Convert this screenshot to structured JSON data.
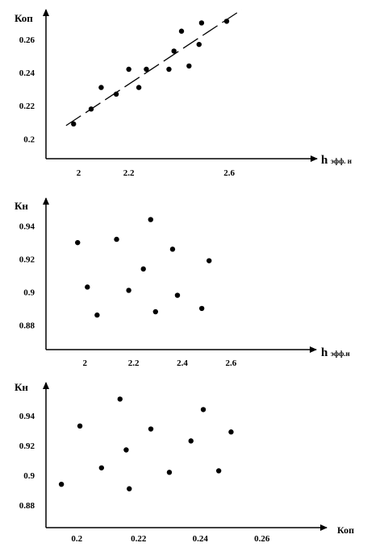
{
  "chart_data": [
    {
      "type": "scatter",
      "ylabel": "Коп",
      "xlabel_main": "h",
      "xlabel_sub": "эфф. н",
      "xticks": [
        "2",
        "2.2",
        "2.6"
      ],
      "xtick_values": [
        2,
        2.2,
        2.6
      ],
      "yticks": [
        "0.2",
        "0.22",
        "0.24",
        "0.26"
      ],
      "ytick_values": [
        0.2,
        0.22,
        0.24,
        0.26
      ],
      "xlim": [
        1.87,
        2.95
      ],
      "ylim": [
        0.188,
        0.278
      ],
      "trendline": {
        "x": [
          1.95,
          2.65
        ],
        "y": [
          0.208,
          0.278
        ],
        "style": "dashed"
      },
      "points": [
        {
          "x": 1.98,
          "y": 0.209
        },
        {
          "x": 2.05,
          "y": 0.218
        },
        {
          "x": 2.09,
          "y": 0.231
        },
        {
          "x": 2.15,
          "y": 0.227
        },
        {
          "x": 2.2,
          "y": 0.242
        },
        {
          "x": 2.24,
          "y": 0.231
        },
        {
          "x": 2.27,
          "y": 0.242
        },
        {
          "x": 2.36,
          "y": 0.242
        },
        {
          "x": 2.38,
          "y": 0.253
        },
        {
          "x": 2.41,
          "y": 0.265
        },
        {
          "x": 2.44,
          "y": 0.244
        },
        {
          "x": 2.48,
          "y": 0.257
        },
        {
          "x": 2.49,
          "y": 0.27
        },
        {
          "x": 2.59,
          "y": 0.271
        }
      ]
    },
    {
      "type": "scatter",
      "ylabel": "Кн",
      "xlabel_main": "h",
      "xlabel_sub": "эфф.н",
      "xticks": [
        "2",
        "2.2",
        "2.4",
        "2.6"
      ],
      "xtick_values": [
        2,
        2.2,
        2.4,
        2.6
      ],
      "yticks": [
        "0.88",
        "0.9",
        "0.92",
        "0.94"
      ],
      "ytick_values": [
        0.88,
        0.9,
        0.92,
        0.94
      ],
      "xlim": [
        1.84,
        2.95
      ],
      "ylim": [
        0.865,
        0.957
      ],
      "points": [
        {
          "x": 1.97,
          "y": 0.93
        },
        {
          "x": 2.01,
          "y": 0.903
        },
        {
          "x": 2.05,
          "y": 0.886
        },
        {
          "x": 2.13,
          "y": 0.932
        },
        {
          "x": 2.18,
          "y": 0.901
        },
        {
          "x": 2.24,
          "y": 0.914
        },
        {
          "x": 2.27,
          "y": 0.944
        },
        {
          "x": 2.29,
          "y": 0.888
        },
        {
          "x": 2.36,
          "y": 0.926
        },
        {
          "x": 2.38,
          "y": 0.898
        },
        {
          "x": 2.48,
          "y": 0.89
        },
        {
          "x": 2.51,
          "y": 0.919
        }
      ]
    },
    {
      "type": "scatter",
      "ylabel": "Кн",
      "xlabel_main": "Коп",
      "xlabel_sub": "",
      "xticks": [
        "0.2",
        "0.22",
        "0.24",
        "0.26"
      ],
      "xtick_values": [
        0.2,
        0.22,
        0.24,
        0.26
      ],
      "yticks": [
        "0.88",
        "0.9",
        "0.92",
        "0.94"
      ],
      "ytick_values": [
        0.88,
        0.9,
        0.92,
        0.94
      ],
      "xlim": [
        0.19,
        0.281
      ],
      "ylim": [
        0.865,
        0.962
      ],
      "points": [
        {
          "x": 0.195,
          "y": 0.894
        },
        {
          "x": 0.201,
          "y": 0.933
        },
        {
          "x": 0.208,
          "y": 0.905
        },
        {
          "x": 0.214,
          "y": 0.951
        },
        {
          "x": 0.217,
          "y": 0.891
        },
        {
          "x": 0.216,
          "y": 0.917
        },
        {
          "x": 0.224,
          "y": 0.931
        },
        {
          "x": 0.23,
          "y": 0.902
        },
        {
          "x": 0.237,
          "y": 0.923
        },
        {
          "x": 0.241,
          "y": 0.944
        },
        {
          "x": 0.246,
          "y": 0.903
        },
        {
          "x": 0.25,
          "y": 0.929
        }
      ]
    }
  ]
}
